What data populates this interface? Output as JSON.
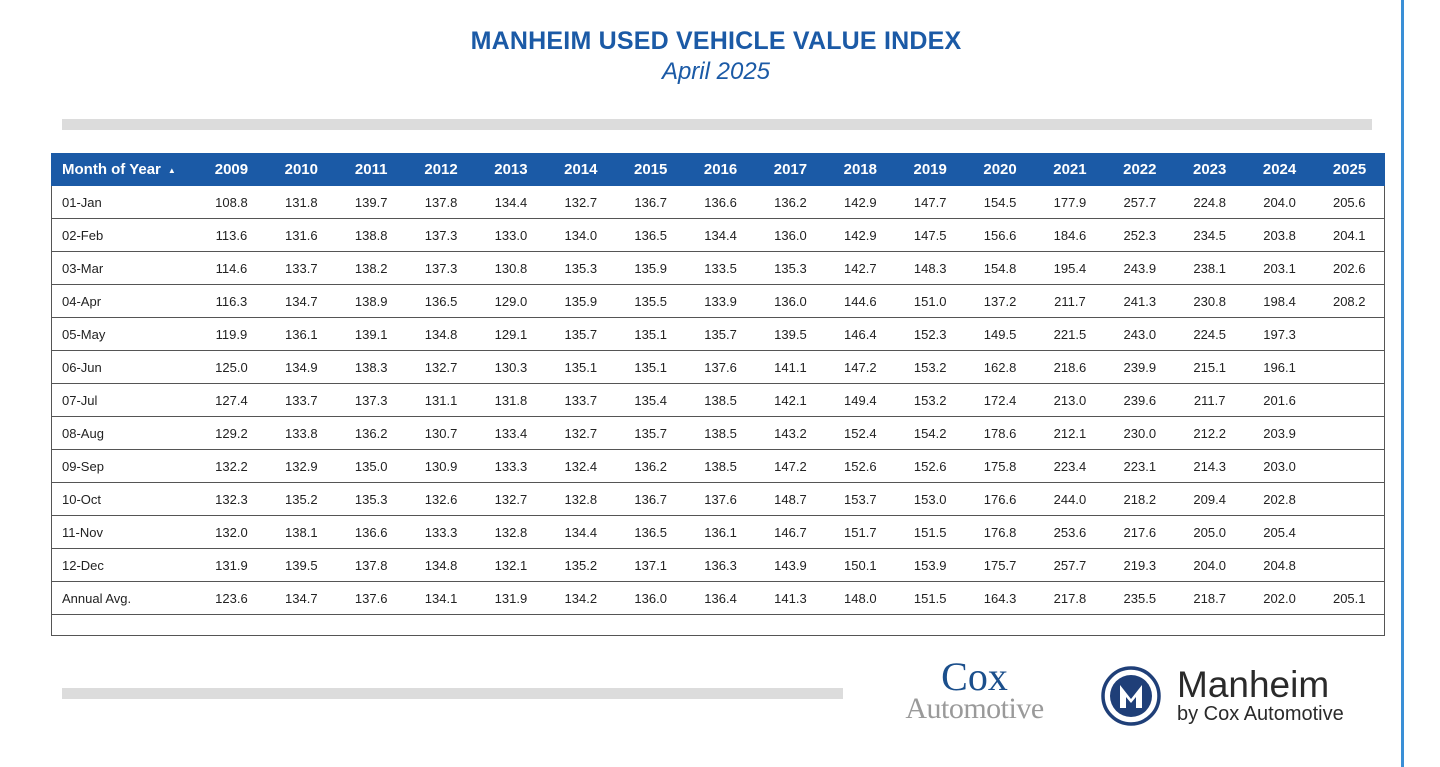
{
  "header": {
    "title": "MANHEIM USED VEHICLE VALUE INDEX",
    "subtitle": "April 2025"
  },
  "table": {
    "first_column_header": "Month of Year",
    "sort_indicator": "▲",
    "years": [
      "2009",
      "2010",
      "2011",
      "2012",
      "2013",
      "2014",
      "2015",
      "2016",
      "2017",
      "2018",
      "2019",
      "2020",
      "2021",
      "2022",
      "2023",
      "2024",
      "2025"
    ],
    "rows": [
      {
        "label": "01-Jan",
        "values": [
          "108.8",
          "131.8",
          "139.7",
          "137.8",
          "134.4",
          "132.7",
          "136.7",
          "136.6",
          "136.2",
          "142.9",
          "147.7",
          "154.5",
          "177.9",
          "257.7",
          "224.8",
          "204.0",
          "205.6"
        ]
      },
      {
        "label": "02-Feb",
        "values": [
          "113.6",
          "131.6",
          "138.8",
          "137.3",
          "133.0",
          "134.0",
          "136.5",
          "134.4",
          "136.0",
          "142.9",
          "147.5",
          "156.6",
          "184.6",
          "252.3",
          "234.5",
          "203.8",
          "204.1"
        ]
      },
      {
        "label": "03-Mar",
        "values": [
          "114.6",
          "133.7",
          "138.2",
          "137.3",
          "130.8",
          "135.3",
          "135.9",
          "133.5",
          "135.3",
          "142.7",
          "148.3",
          "154.8",
          "195.4",
          "243.9",
          "238.1",
          "203.1",
          "202.6"
        ]
      },
      {
        "label": "04-Apr",
        "values": [
          "116.3",
          "134.7",
          "138.9",
          "136.5",
          "129.0",
          "135.9",
          "135.5",
          "133.9",
          "136.0",
          "144.6",
          "151.0",
          "137.2",
          "211.7",
          "241.3",
          "230.8",
          "198.4",
          "208.2"
        ]
      },
      {
        "label": "05-May",
        "values": [
          "119.9",
          "136.1",
          "139.1",
          "134.8",
          "129.1",
          "135.7",
          "135.1",
          "135.7",
          "139.5",
          "146.4",
          "152.3",
          "149.5",
          "221.5",
          "243.0",
          "224.5",
          "197.3",
          ""
        ]
      },
      {
        "label": "06-Jun",
        "values": [
          "125.0",
          "134.9",
          "138.3",
          "132.7",
          "130.3",
          "135.1",
          "135.1",
          "137.6",
          "141.1",
          "147.2",
          "153.2",
          "162.8",
          "218.6",
          "239.9",
          "215.1",
          "196.1",
          ""
        ]
      },
      {
        "label": "07-Jul",
        "values": [
          "127.4",
          "133.7",
          "137.3",
          "131.1",
          "131.8",
          "133.7",
          "135.4",
          "138.5",
          "142.1",
          "149.4",
          "153.2",
          "172.4",
          "213.0",
          "239.6",
          "211.7",
          "201.6",
          ""
        ]
      },
      {
        "label": "08-Aug",
        "values": [
          "129.2",
          "133.8",
          "136.2",
          "130.7",
          "133.4",
          "132.7",
          "135.7",
          "138.5",
          "143.2",
          "152.4",
          "154.2",
          "178.6",
          "212.1",
          "230.0",
          "212.2",
          "203.9",
          ""
        ]
      },
      {
        "label": "09-Sep",
        "values": [
          "132.2",
          "132.9",
          "135.0",
          "130.9",
          "133.3",
          "132.4",
          "136.2",
          "138.5",
          "147.2",
          "152.6",
          "152.6",
          "175.8",
          "223.4",
          "223.1",
          "214.3",
          "203.0",
          ""
        ]
      },
      {
        "label": "10-Oct",
        "values": [
          "132.3",
          "135.2",
          "135.3",
          "132.6",
          "132.7",
          "132.8",
          "136.7",
          "137.6",
          "148.7",
          "153.7",
          "153.0",
          "176.6",
          "244.0",
          "218.2",
          "209.4",
          "202.8",
          ""
        ]
      },
      {
        "label": "11-Nov",
        "values": [
          "132.0",
          "138.1",
          "136.6",
          "133.3",
          "132.8",
          "134.4",
          "136.5",
          "136.1",
          "146.7",
          "151.7",
          "151.5",
          "176.8",
          "253.6",
          "217.6",
          "205.0",
          "205.4",
          ""
        ]
      },
      {
        "label": "12-Dec",
        "values": [
          "131.9",
          "139.5",
          "137.8",
          "134.8",
          "132.1",
          "135.2",
          "137.1",
          "136.3",
          "143.9",
          "150.1",
          "153.9",
          "175.7",
          "257.7",
          "219.3",
          "204.0",
          "204.8",
          ""
        ]
      },
      {
        "label": "Annual Avg.",
        "values": [
          "123.6",
          "134.7",
          "137.6",
          "134.1",
          "131.9",
          "134.2",
          "136.0",
          "136.4",
          "141.3",
          "148.0",
          "151.5",
          "164.3",
          "217.8",
          "235.5",
          "218.7",
          "202.0",
          "205.1"
        ]
      }
    ]
  },
  "logos": {
    "cox_line1": "Cox",
    "cox_line2": "Automotive",
    "manheim_name": "Manheim",
    "manheim_sub": "by Cox Automotive",
    "manheim_emblem_letter": "M",
    "brand_blue": "#1b5aa6",
    "emblem_navy": "#1f3f78"
  }
}
